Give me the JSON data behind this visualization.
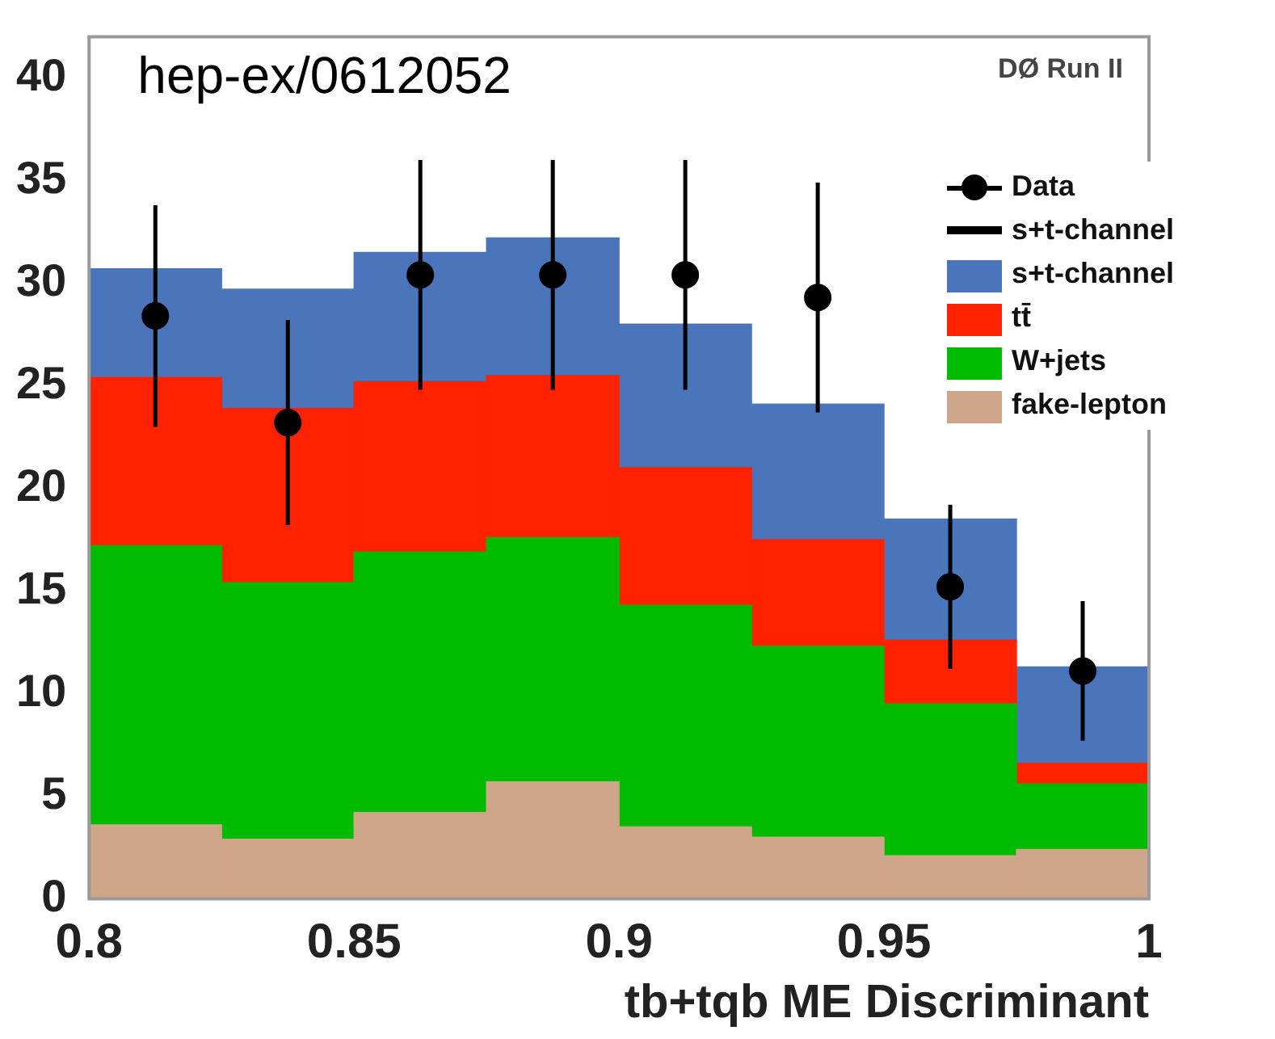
{
  "chart_data": {
    "type": "bar",
    "annotations": [
      "hep-ex/0612052",
      "DØ Run II"
    ],
    "xlabel": "tb+tqb ME Discriminant",
    "x": [
      0.8125,
      0.8375,
      0.8625,
      0.8875,
      0.9125,
      0.9375,
      0.9625,
      0.9875
    ],
    "stacked": true,
    "xlim": [
      0.8,
      1
    ],
    "xticks": [
      0.8,
      0.85,
      0.9,
      0.95,
      1
    ],
    "ylim": [
      0,
      42
    ],
    "yticks": [
      0,
      5,
      10,
      15,
      20,
      25,
      30,
      35,
      40
    ],
    "grid": false,
    "legend": "top right",
    "series": [
      {
        "name": "fake-lepton",
        "color": "#d0a68a",
        "values": [
          3.6,
          2.9,
          4.2,
          5.7,
          3.5,
          3.0,
          2.1,
          2.4
        ]
      },
      {
        "name": "W+jets",
        "color": "#00bb00",
        "values": [
          13.6,
          12.5,
          12.7,
          11.9,
          10.8,
          9.3,
          7.4,
          3.2
        ]
      },
      {
        "name": "tt̄",
        "color": "#ff2200",
        "values": [
          8.2,
          8.5,
          8.3,
          7.9,
          6.7,
          5.2,
          3.1,
          1.0
        ]
      },
      {
        "name": "s+t-channel",
        "color": "#4a75bb",
        "values": [
          5.3,
          5.8,
          6.3,
          6.7,
          7.0,
          6.6,
          5.9,
          4.7
        ]
      },
      {
        "name": "Data",
        "type": "scatter",
        "marker": "circle",
        "color": "#000000",
        "x": [
          0.8125,
          0.8375,
          0.8625,
          0.8875,
          0.9125,
          0.9375,
          0.9625,
          0.9875
        ],
        "values": [
          28.4,
          23.2,
          30.4,
          30.4,
          30.4,
          29.3,
          15.2,
          11.1
        ],
        "errors": [
          5.4,
          5.0,
          5.6,
          5.6,
          5.6,
          5.6,
          4.0,
          3.4
        ]
      },
      {
        "name": "s+t-channel",
        "type": "line",
        "color": "#000000",
        "values": [
          null,
          null,
          null,
          null,
          null,
          null,
          null,
          null
        ]
      }
    ]
  }
}
